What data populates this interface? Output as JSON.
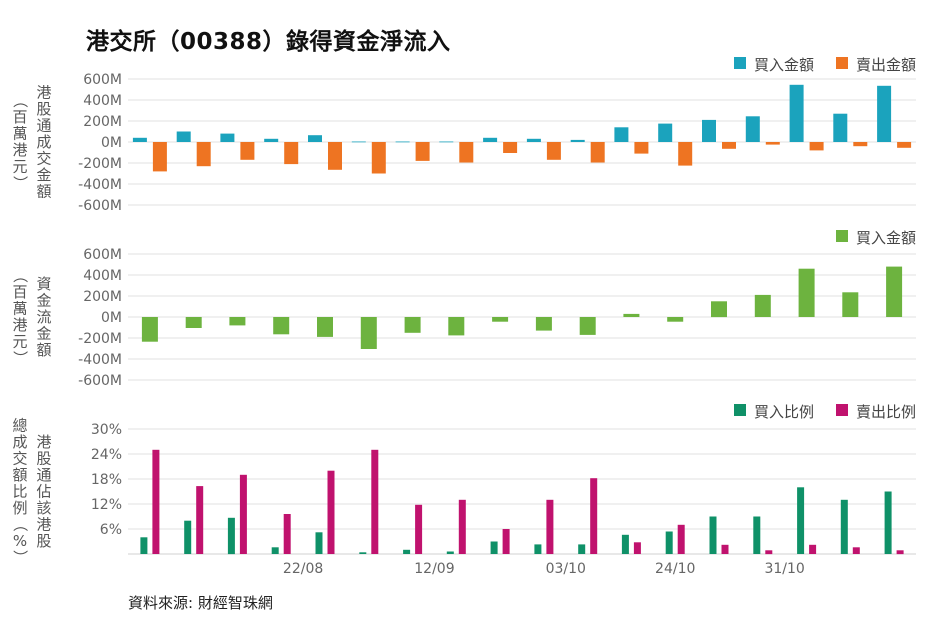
{
  "title": "港交所（00388）錄得資金淨流入",
  "source": "資料來源: 財經智珠網",
  "chart_data": [
    {
      "type": "bar",
      "ylabel": "港股通成交金額（百萬港元）",
      "ylabel_lines": [
        "港股通成交金額",
        "（百萬港元）"
      ],
      "ylim": [
        -600,
        600
      ],
      "yticks": [
        600,
        400,
        200,
        0,
        -200,
        -400,
        -600
      ],
      "ytick_labels": [
        "600M",
        "400M",
        "200M",
        "0M",
        "-200M",
        "-400M",
        "-600M"
      ],
      "legend_position": "top-right",
      "series": [
        {
          "name": "買入金額",
          "color": "#1ba3bd",
          "values": [
            40,
            100,
            80,
            30,
            65,
            5,
            5,
            5,
            40,
            30,
            20,
            140,
            175,
            210,
            245,
            545,
            270,
            535
          ]
        },
        {
          "name": "賣出金額",
          "color": "#ee7422",
          "values": [
            -280,
            -230,
            -170,
            -210,
            -265,
            -300,
            -180,
            -195,
            -105,
            -170,
            -195,
            -110,
            -225,
            -65,
            -25,
            -80,
            -40,
            -55
          ]
        }
      ]
    },
    {
      "type": "bar",
      "ylabel": "資金流金額（百萬港元）",
      "ylabel_lines": [
        "資金流金額",
        "（百萬港元）"
      ],
      "ylim": [
        -600,
        600
      ],
      "yticks": [
        600,
        400,
        200,
        0,
        -200,
        -400,
        -600
      ],
      "ytick_labels": [
        "600M",
        "400M",
        "200M",
        "0M",
        "-200M",
        "-400M",
        "-600M"
      ],
      "legend_position": "top-right",
      "series": [
        {
          "name": "買入金額",
          "color": "#6db33f",
          "values": [
            -235,
            -105,
            -80,
            -165,
            -190,
            -305,
            -150,
            -175,
            -45,
            -130,
            -170,
            30,
            -45,
            150,
            210,
            460,
            235,
            480
          ]
        }
      ]
    },
    {
      "type": "bar",
      "ylabel": "港股通佔該港股總成交額比例（%）",
      "ylabel_lines": [
        "港股通佔該港股",
        "總成交額比例（%）"
      ],
      "ylim": [
        0,
        30
      ],
      "yticks": [
        30,
        24,
        18,
        12,
        6
      ],
      "ytick_labels": [
        "30%",
        "24%",
        "18%",
        "12%",
        "6%"
      ],
      "legend_position": "top-right",
      "x_tick_labels": [
        {
          "index": 3.5,
          "label": "22/08"
        },
        {
          "index": 6.5,
          "label": "12/09"
        },
        {
          "index": 9.5,
          "label": "03/10"
        },
        {
          "index": 12.0,
          "label": "24/10"
        },
        {
          "index": 14.5,
          "label": "31/10"
        }
      ],
      "series": [
        {
          "name": "買入比例",
          "color": "#0f9168",
          "values": [
            4,
            8,
            8.7,
            1.6,
            5.2,
            0.4,
            1,
            0.6,
            3,
            2.3,
            2.3,
            4.6,
            5.4,
            9,
            9,
            16,
            13,
            15
          ]
        },
        {
          "name": "賣出比例",
          "color": "#c0126e",
          "values": [
            25,
            16.3,
            19,
            9.6,
            20,
            25,
            11.8,
            13,
            6,
            13,
            18.2,
            2.8,
            7,
            2.2,
            0.9,
            2.2,
            1.6,
            0.9
          ]
        }
      ]
    }
  ]
}
